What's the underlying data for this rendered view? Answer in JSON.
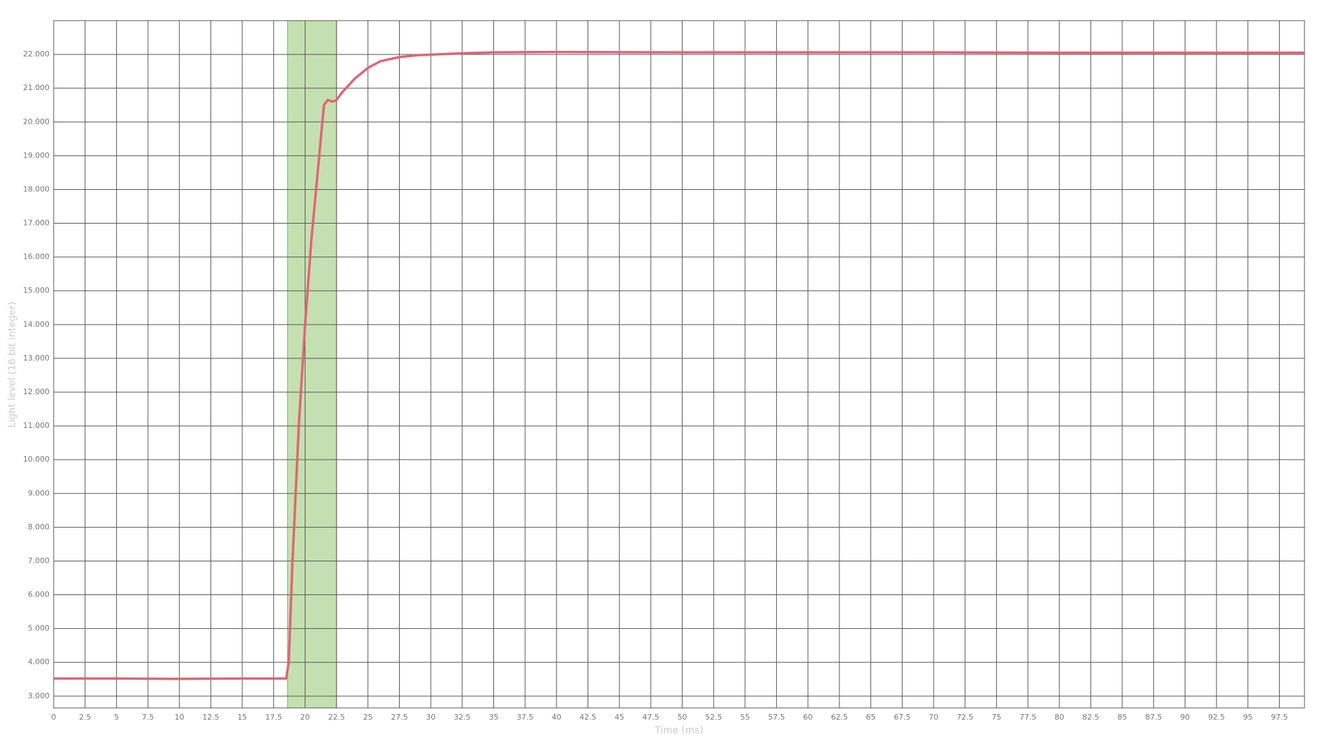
{
  "chart_data": {
    "type": "line",
    "x_label": "Time (ms)",
    "y_label": "Light level (16 bit integer)",
    "xlim": [
      0,
      99.5
    ],
    "ylim": [
      2650,
      23000
    ],
    "xticks": [
      0,
      2.5,
      5,
      7.5,
      10,
      12.5,
      15,
      17.5,
      20,
      22.5,
      25,
      27.5,
      30,
      32.5,
      35,
      37.5,
      40,
      42.5,
      45,
      47.5,
      50,
      52.5,
      55,
      57.5,
      60,
      62.5,
      65,
      67.5,
      70,
      72.5,
      75,
      77.5,
      80,
      82.5,
      85,
      87.5,
      90,
      92.5,
      95,
      97.5
    ],
    "yticks": [
      {
        "value": 3000,
        "label": "3.000"
      },
      {
        "value": 4000,
        "label": "4.000"
      },
      {
        "value": 5000,
        "label": "5.000"
      },
      {
        "value": 6000,
        "label": "6.000"
      },
      {
        "value": 7000,
        "label": "7.000"
      },
      {
        "value": 8000,
        "label": "8.000"
      },
      {
        "value": 9000,
        "label": "9.000"
      },
      {
        "value": 10000,
        "label": "10.000"
      },
      {
        "value": 11000,
        "label": "11.000"
      },
      {
        "value": 12000,
        "label": "12.000"
      },
      {
        "value": 13000,
        "label": "13.000"
      },
      {
        "value": 14000,
        "label": "14.000"
      },
      {
        "value": 15000,
        "label": "15.000"
      },
      {
        "value": 16000,
        "label": "16.000"
      },
      {
        "value": 17000,
        "label": "17.000"
      },
      {
        "value": 18000,
        "label": "18.000"
      },
      {
        "value": 19000,
        "label": "19.000"
      },
      {
        "value": 20000,
        "label": "20.000"
      },
      {
        "value": 21000,
        "label": "21.000"
      },
      {
        "value": 22000,
        "label": "22.000"
      }
    ],
    "grid": true,
    "highlight": {
      "range": [
        18.6,
        22.5
      ],
      "color": "#c5e0b0"
    },
    "series": [
      {
        "color": "#e06475",
        "x": [
          0,
          5,
          10,
          15,
          18.5,
          18.7,
          19,
          19.5,
          20,
          20.5,
          21,
          21.5,
          21.8,
          22.2,
          22.5,
          23,
          24,
          25,
          26,
          27.5,
          29,
          31,
          33,
          35,
          40,
          50,
          60,
          70,
          80,
          90,
          99.5
        ],
        "values": [
          3520,
          3520,
          3510,
          3520,
          3520,
          4000,
          7000,
          11000,
          14000,
          16500,
          18500,
          20500,
          20650,
          20600,
          20650,
          20900,
          21300,
          21600,
          21800,
          21920,
          21980,
          22010,
          22040,
          22060,
          22070,
          22060,
          22060,
          22060,
          22050,
          22050,
          22050
        ]
      }
    ]
  }
}
